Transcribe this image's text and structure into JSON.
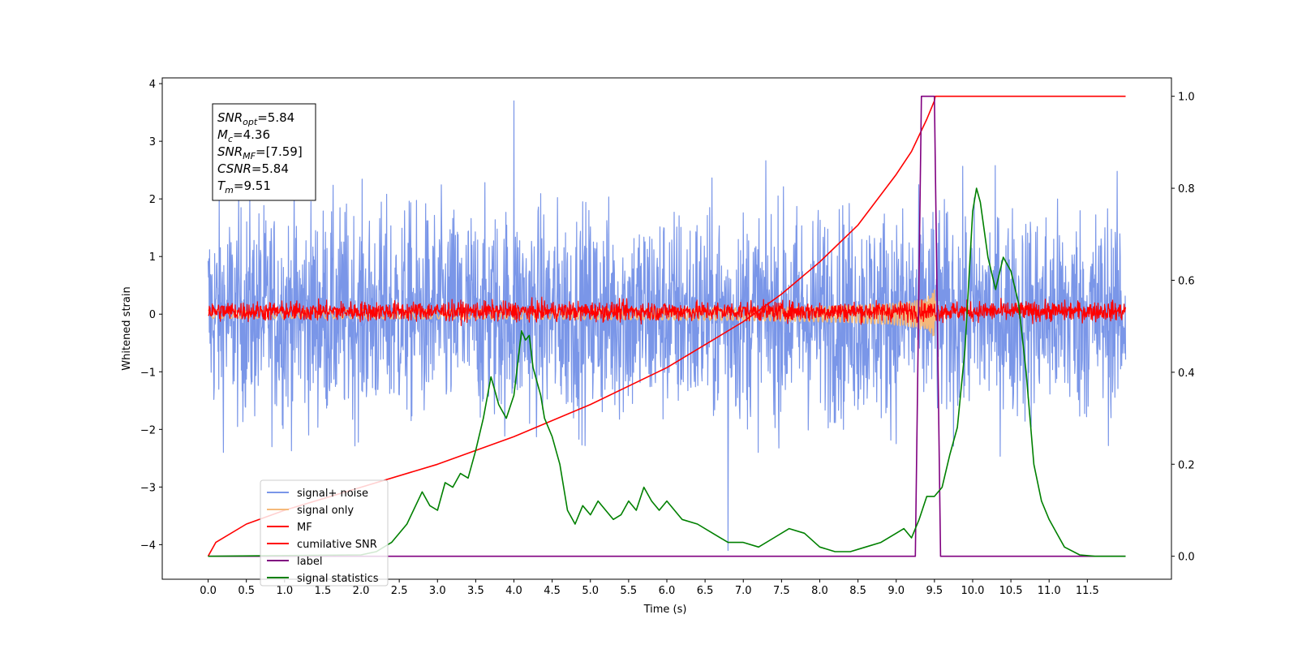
{
  "chart_data": {
    "type": "line",
    "xlabel": "Time (s)",
    "ylabel": "Whitened strain",
    "xlim": [
      -0.6,
      12.6
    ],
    "ylim": [
      -4.6,
      4.1
    ],
    "y2lim": [
      -0.05,
      1.04
    ],
    "xticks": [
      0.0,
      0.5,
      1.0,
      1.5,
      2.0,
      2.5,
      3.0,
      3.5,
      4.0,
      4.5,
      5.0,
      5.5,
      6.0,
      6.5,
      7.0,
      7.5,
      8.0,
      8.5,
      9.0,
      9.5,
      10.0,
      10.5,
      11.0,
      11.5
    ],
    "xtick_labels": [
      "0.0",
      "0.5",
      "1.0",
      "1.5",
      "2.0",
      "2.5",
      "3.0",
      "3.5",
      "4.0",
      "4.5",
      "5.0",
      "5.5",
      "6.0",
      "6.5",
      "7.0",
      "7.5",
      "8.0",
      "8.5",
      "9.0",
      "9.5",
      "10.0",
      "10.5",
      "11.0",
      "11.5"
    ],
    "yticks": [
      4,
      3,
      2,
      1,
      0,
      -1,
      -2,
      -3,
      -4
    ],
    "ytick_labels": [
      "4",
      "3",
      "2",
      "1",
      "0",
      "−1",
      "−2",
      "−3",
      "−4"
    ],
    "y2ticks": [
      1.0,
      0.8,
      0.6,
      0.4,
      0.2,
      0.0
    ],
    "y2tick_labels": [
      "1.0",
      "0.8",
      "0.6",
      "0.4",
      "0.2",
      "0.0"
    ],
    "legend_position": "lower-left",
    "annotation": {
      "lines": [
        {
          "sym": "SNR",
          "sub": "opt",
          "val": "=5.84"
        },
        {
          "sym": "M",
          "sub": "c",
          "val": "=4.36"
        },
        {
          "sym": "SNR",
          "sub": "MF",
          "val": "=[7.59]"
        },
        {
          "sym": "CSNR",
          "sub": "",
          "val": "=5.84"
        },
        {
          "sym": "T",
          "sub": "m",
          "val": "=9.51"
        }
      ]
    },
    "series": [
      {
        "name": "signal+ noise",
        "color": "#7a96e8",
        "axis": "left",
        "kind": "noise",
        "x_range": [
          0.0,
          12.0
        ],
        "envelope": [
          -2.2,
          2.2
        ],
        "approx_extremes": {
          "max": 3.7,
          "min": -4.1
        }
      },
      {
        "name": "signal only",
        "color": "#f5b97a",
        "axis": "left",
        "kind": "chirp",
        "x_range": [
          0.0,
          9.51
        ],
        "peak_amplitude": 0.45
      },
      {
        "name": "MF",
        "color": "#ff0000",
        "axis": "left",
        "kind": "noise",
        "x_range": [
          0.0,
          12.0
        ],
        "envelope": [
          -0.15,
          0.25
        ]
      },
      {
        "name": "cumilative SNR",
        "color": "#ff0000",
        "axis": "right",
        "kind": "curve",
        "x": [
          0.0,
          0.1,
          0.5,
          1.0,
          2.0,
          3.0,
          4.0,
          5.0,
          6.0,
          7.0,
          7.5,
          8.0,
          8.5,
          9.0,
          9.2,
          9.4,
          9.5,
          9.51,
          12.0
        ],
        "y": [
          0.0,
          0.03,
          0.07,
          0.1,
          0.15,
          0.2,
          0.26,
          0.33,
          0.41,
          0.51,
          0.57,
          0.64,
          0.72,
          0.83,
          0.88,
          0.95,
          0.99,
          1.0,
          1.0
        ]
      },
      {
        "name": "label",
        "color": "#800080",
        "axis": "right",
        "kind": "step",
        "x": [
          0.0,
          9.25,
          9.33,
          9.5,
          9.58,
          12.0
        ],
        "y": [
          0.0,
          0.0,
          1.0,
          1.0,
          0.0,
          0.0
        ]
      },
      {
        "name": "signal statistics",
        "color": "#008000",
        "axis": "right",
        "kind": "curve",
        "x": [
          0.0,
          2.0,
          2.2,
          2.4,
          2.6,
          2.8,
          2.9,
          3.0,
          3.1,
          3.2,
          3.3,
          3.4,
          3.5,
          3.6,
          3.7,
          3.75,
          3.8,
          3.9,
          4.0,
          4.1,
          4.15,
          4.2,
          4.25,
          4.3,
          4.35,
          4.4,
          4.5,
          4.6,
          4.7,
          4.8,
          4.9,
          5.0,
          5.1,
          5.2,
          5.3,
          5.4,
          5.5,
          5.6,
          5.7,
          5.8,
          5.9,
          6.0,
          6.2,
          6.4,
          6.6,
          6.8,
          7.0,
          7.2,
          7.4,
          7.6,
          7.8,
          8.0,
          8.2,
          8.4,
          8.6,
          8.8,
          9.0,
          9.1,
          9.2,
          9.3,
          9.4,
          9.5,
          9.6,
          9.7,
          9.8,
          9.9,
          10.0,
          10.05,
          10.1,
          10.2,
          10.3,
          10.4,
          10.5,
          10.6,
          10.7,
          10.8,
          10.9,
          11.0,
          11.1,
          11.2,
          11.4,
          11.6,
          12.0
        ],
        "y": [
          0.0,
          0.003,
          0.01,
          0.03,
          0.07,
          0.14,
          0.11,
          0.1,
          0.16,
          0.15,
          0.18,
          0.17,
          0.23,
          0.3,
          0.39,
          0.36,
          0.33,
          0.3,
          0.35,
          0.49,
          0.47,
          0.48,
          0.41,
          0.38,
          0.35,
          0.3,
          0.26,
          0.2,
          0.1,
          0.07,
          0.11,
          0.09,
          0.12,
          0.1,
          0.08,
          0.09,
          0.12,
          0.1,
          0.15,
          0.12,
          0.1,
          0.12,
          0.08,
          0.07,
          0.05,
          0.03,
          0.03,
          0.02,
          0.04,
          0.06,
          0.05,
          0.02,
          0.01,
          0.01,
          0.02,
          0.03,
          0.05,
          0.06,
          0.04,
          0.08,
          0.13,
          0.13,
          0.15,
          0.22,
          0.28,
          0.45,
          0.75,
          0.8,
          0.77,
          0.65,
          0.58,
          0.65,
          0.62,
          0.55,
          0.4,
          0.2,
          0.12,
          0.08,
          0.05,
          0.02,
          0.003,
          0.0,
          0.0
        ]
      }
    ]
  }
}
